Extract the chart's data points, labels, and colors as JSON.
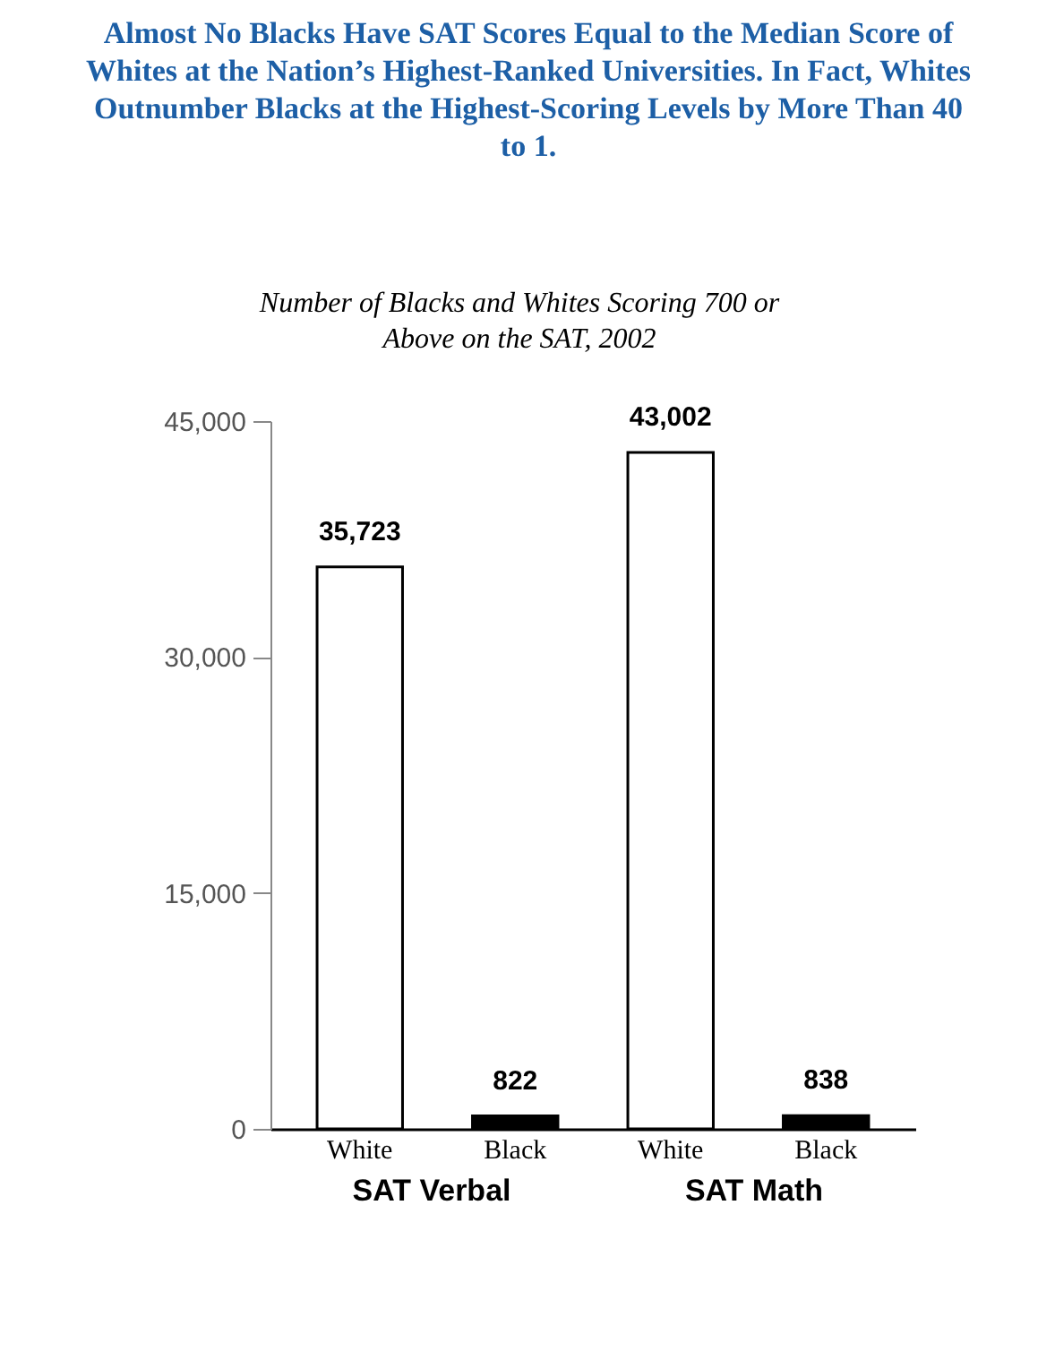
{
  "chart_data": {
    "type": "bar",
    "title": "Almost No Blacks Have SAT Scores Equal to the Median Score of Whites at the Nation’s Highest-Ranked Universities. In Fact, Whites Outnumber Blacks at the Highest-Scoring Levels by More Than 40 to 1.",
    "subtitle": "Number of Blacks and Whites Scoring 700 or Above on the SAT, 2002",
    "categories": [
      "White",
      "Black",
      "White",
      "Black"
    ],
    "values": [
      35723,
      822,
      43002,
      838
    ],
    "colors": [
      "#ffffff",
      "#000000",
      "#ffffff",
      "#000000"
    ],
    "data_labels": true,
    "value_labels": [
      "35,723",
      "822",
      "43,002",
      "838"
    ],
    "ylim": [
      0,
      45000
    ],
    "yticks": [
      0,
      {
        "value": 15000,
        "label": "15,000"
      },
      {
        "value": 30000,
        "label": "30,000"
      },
      {
        "value": 45000,
        "label": "45,000"
      }
    ],
    "grid": false,
    "annotations": [
      "SAT Verbal",
      "SAT Math"
    ]
  }
}
